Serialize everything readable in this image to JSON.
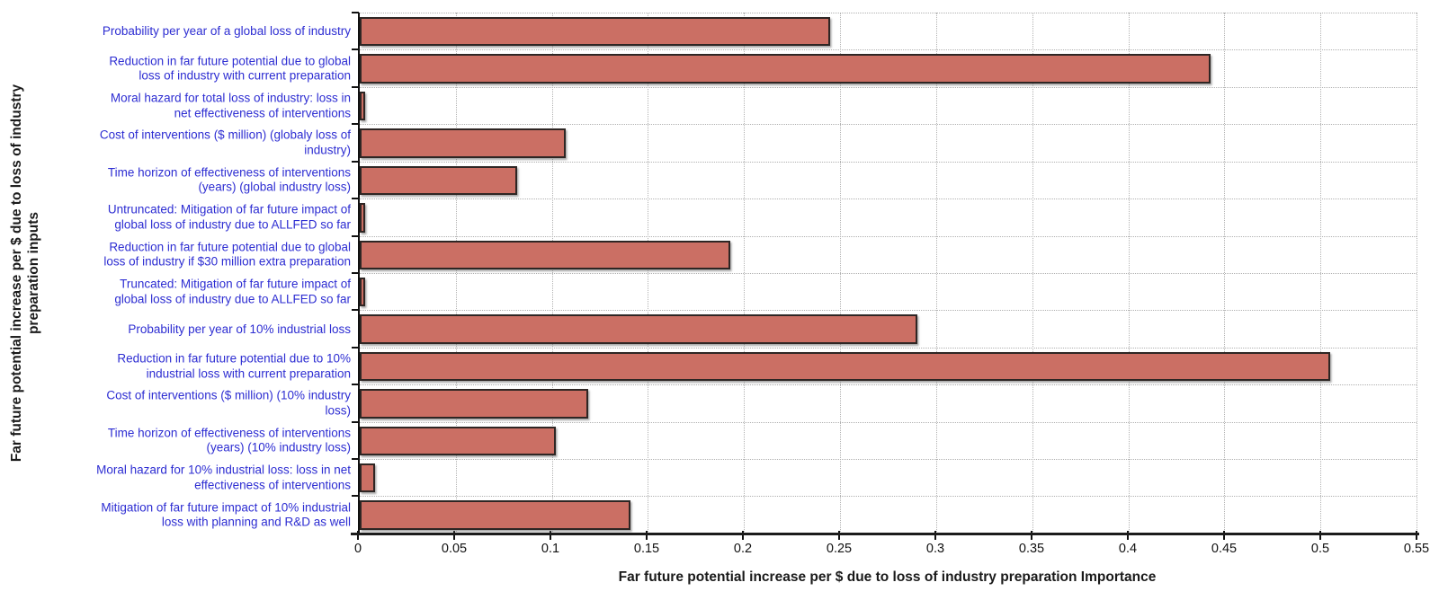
{
  "chart_data": {
    "type": "bar",
    "orientation": "horizontal",
    "title": "",
    "xlabel": "Far future potential increase per $ due to loss of industry preparation Importance",
    "ylabel": "Far future potential increase per $ due to loss of industry\npreparation inputs",
    "xlim": [
      0,
      0.55
    ],
    "xticks": [
      0,
      0.05,
      0.1,
      0.15,
      0.2,
      0.25,
      0.3,
      0.35,
      0.4,
      0.45,
      0.5,
      0.55
    ],
    "xtick_labels": [
      "0",
      "0.05",
      "0.1",
      "0.15",
      "0.2",
      "0.25",
      "0.3",
      "0.35",
      "0.4",
      "0.45",
      "0.5",
      "0.55"
    ],
    "grid": "dotted-vertical-and-horizontal",
    "legend": "none",
    "categories": [
      "Probability per year of a global loss of industry",
      "Reduction in far future potential due to global\nloss of industry with current preparation",
      "Moral hazard for total loss of industry: loss in\nnet effectiveness of interventions",
      "Cost of interventions ($ million) (globaly loss of\nindustry)",
      "Time horizon of effectiveness of interventions\n(years) (global industry loss)",
      "Untruncated: Mitigation of far future impact of\nglobal loss of industry due to ALLFED so far",
      "Reduction in far future potential due to global\nloss of industry if $30 million extra preparation",
      "Truncated: Mitigation of far future impact of\nglobal loss of industry due to ALLFED so far",
      "Probability per year of 10% industrial loss",
      "Reduction in far future potential due to 10%\nindustrial loss with current preparation",
      "Cost of interventions ($ million) (10% industry\nloss)",
      "Time horizon of effectiveness of interventions\n(years) (10% industry loss)",
      "Moral hazard for 10% industrial loss: loss in net\neffectiveness of interventions",
      "Mitigation of far future impact of 10% industrial\nloss with planning and R&D as well"
    ],
    "values": [
      0.245,
      0.443,
      0.003,
      0.107,
      0.082,
      0.003,
      0.193,
      0.003,
      0.29,
      0.505,
      0.119,
      0.102,
      0.008,
      0.141
    ],
    "colors": {
      "bar_fill": "#cb6f64",
      "bar_border": "#2e2624",
      "category_label": "#2d2dd2",
      "axis_text": "#1a1a1a",
      "gridline": "#b3b3b3",
      "axis_line": "#1c1c1c"
    }
  }
}
